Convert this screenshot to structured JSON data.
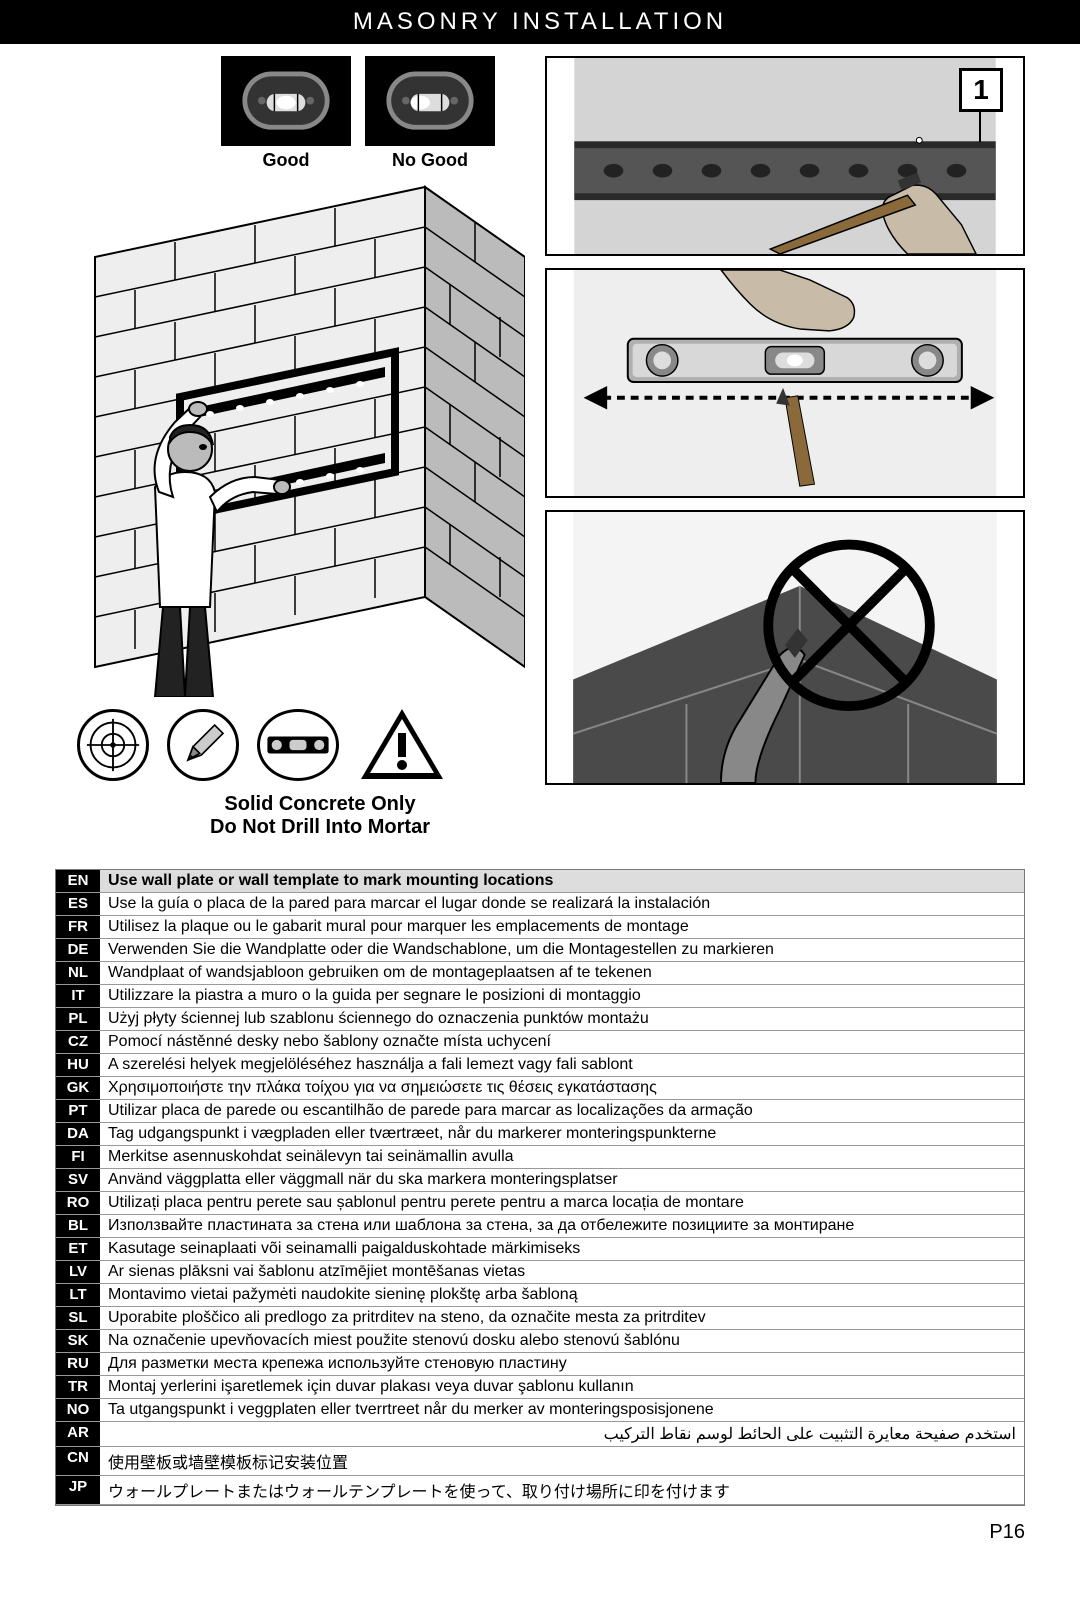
{
  "header": "MASONRY INSTALLATION",
  "step_number": "1",
  "level_good": "Good",
  "level_bad": "No Good",
  "warning_line1": "Solid Concrete Only",
  "warning_line2": "Do Not Drill Into Mortar",
  "page_number": "P16",
  "colors": {
    "black": "#000000",
    "white": "#ffffff",
    "gray_light": "#dddddd",
    "gray_mid": "#999999",
    "gray_dark": "#555555",
    "skin": "#c9c9c9"
  },
  "languages": [
    {
      "code": "EN",
      "text": "Use wall plate or wall template to mark mounting locations"
    },
    {
      "code": "ES",
      "text": "Use la guía o placa de la pared para marcar el lugar donde se realizará la instalación"
    },
    {
      "code": "FR",
      "text": "Utilisez la plaque ou le gabarit mural pour marquer les emplacements de montage"
    },
    {
      "code": "DE",
      "text": "Verwenden Sie die Wandplatte oder die Wandschablone, um die Montagestellen zu markieren"
    },
    {
      "code": "NL",
      "text": "Wandplaat of wandsjabloon gebruiken om de montageplaatsen af te tekenen"
    },
    {
      "code": "IT",
      "text": "Utilizzare la piastra a muro o la guida per segnare le posizioni di montaggio"
    },
    {
      "code": "PL",
      "text": "Użyj płyty ściennej lub szablonu ściennego do oznaczenia punktów montażu"
    },
    {
      "code": "CZ",
      "text": "Pomocí nástěnné desky nebo šablony označte místa uchycení"
    },
    {
      "code": "HU",
      "text": "A szerelési helyek megjelöléséhez használja a fali lemezt vagy fali sablont"
    },
    {
      "code": "GK",
      "text": "Χρησιμοποιήστε την πλάκα τοίχου για να σημειώσετε τις θέσεις εγκατάστασης"
    },
    {
      "code": "PT",
      "text": "Utilizar placa de parede ou escantilhão de parede para marcar as localizações da armação"
    },
    {
      "code": "DA",
      "text": "Tag udgangspunkt i vægpladen eller tværtræet, når du markerer monteringspunkterne"
    },
    {
      "code": "FI",
      "text": "Merkitse asennuskohdat seinälevyn tai seinämallin avulla"
    },
    {
      "code": "SV",
      "text": "Använd väggplatta eller väggmall när du ska markera monteringsplatser"
    },
    {
      "code": "RO",
      "text": "Utilizați placa pentru perete sau șablonul pentru perete pentru a marca locația de montare"
    },
    {
      "code": "BL",
      "text": "Използвайте пластината за стена или шаблона за стена, за да отбележите позициите за монтиране"
    },
    {
      "code": "ET",
      "text": "Kasutage seinaplaati või seinamalli paigalduskohtade märkimiseks"
    },
    {
      "code": "LV",
      "text": "Ar sienas plāksni vai šablonu atzīmējiet montēšanas vietas"
    },
    {
      "code": "LT",
      "text": "Montavimo vietai pažymėti naudokite sieninę plokštę arba šabloną"
    },
    {
      "code": "SL",
      "text": "Uporabite ploščico ali predlogo za pritrditev na steno, da označite mesta za pritrditev"
    },
    {
      "code": "SK",
      "text": "Na označenie upevňovacích miest použite stenovú dosku alebo stenovú šablónu"
    },
    {
      "code": "RU",
      "text": "Для разметки места крепежа используйте стеновую пластину"
    },
    {
      "code": "TR",
      "text": "Montaj yerlerini işaretlemek için duvar plakası veya duvar şablonu kullanın"
    },
    {
      "code": "NO",
      "text": "Ta utgangspunkt i veggplaten eller tverrtreet når du merker av monteringsposisjonene"
    },
    {
      "code": "AR",
      "text": "استخدم صفيحة معايرة التثبيت على الحائط لوسم نقاط التركيب"
    },
    {
      "code": "CN",
      "text": "使用壁板或墙壁模板标记安装位置"
    },
    {
      "code": "JP",
      "text": "ウォールプレートまたはウォールテンプレートを使って、取り付け場所に印を付けます"
    }
  ]
}
